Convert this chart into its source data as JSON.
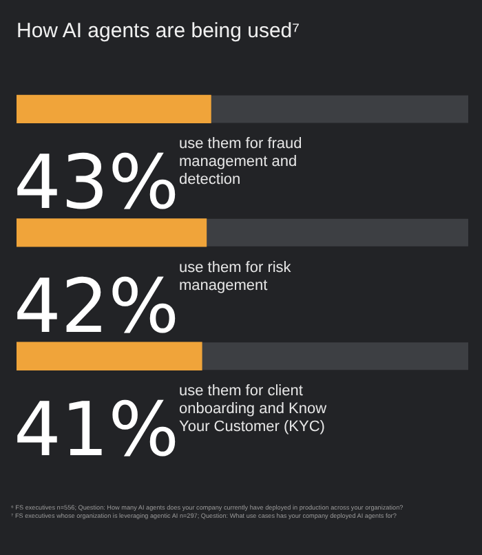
{
  "chart_data": {
    "type": "bar",
    "orientation": "horizontal",
    "title": "How AI agents are being used⁷",
    "categories": [
      "use them for fraud management and detection",
      "use them for risk management",
      "use them for client onboarding and Know Your Customer (KYC)"
    ],
    "values": [
      43,
      42,
      41
    ],
    "value_labels": [
      "43%",
      "42%",
      "41%"
    ],
    "color": "#f0a43a",
    "xlim": [
      0,
      100
    ],
    "tick_labels": false,
    "legend": false,
    "annotations": [
      "⁶ FS executives n=556; Question: How many AI agents does your company currently have deployed in production across your organization?",
      "⁷ FS executives whose organization is leveraging agentic AI n=297; Question: What use cases has your company deployed AI agents for?"
    ]
  }
}
